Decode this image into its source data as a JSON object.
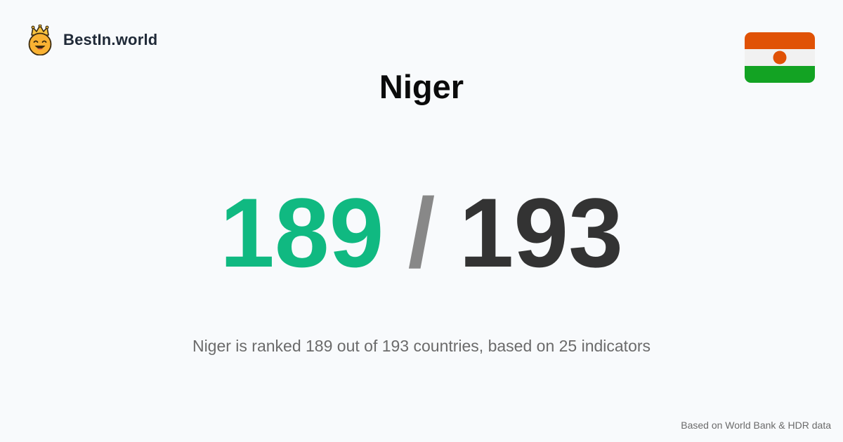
{
  "brand": {
    "name": "BestIn.world",
    "logo_icon": "crown-smiley-icon"
  },
  "country": {
    "name": "Niger",
    "flag_icon": "niger-flag-icon",
    "flag_colors": {
      "top": "#e05206",
      "middle": "#f1f1f1",
      "bottom": "#13a323",
      "disc": "#e05206"
    }
  },
  "ranking": {
    "position": "189",
    "separator": "/",
    "total": "193",
    "summary": "Niger is ranked 189 out of 193 countries, based on 25 indicators"
  },
  "colors": {
    "position": "#10b981",
    "separator": "#888888",
    "total": "#333333"
  },
  "footer": {
    "source": "Based on World Bank & HDR data"
  }
}
